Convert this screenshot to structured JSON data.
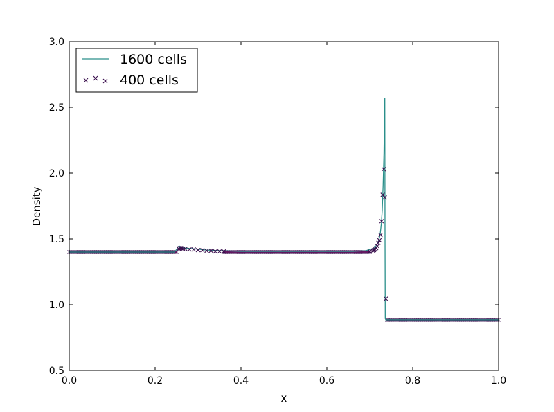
{
  "chart_data": {
    "type": "line",
    "title": "",
    "xlabel": "x",
    "ylabel": "Density",
    "xlim": [
      0.0,
      1.0
    ],
    "ylim": [
      0.5,
      3.0
    ],
    "xticks": [
      "0.0",
      "0.2",
      "0.4",
      "0.6",
      "0.8",
      "1.0"
    ],
    "yticks": [
      "0.5",
      "1.0",
      "1.5",
      "2.0",
      "2.5",
      "3.0"
    ],
    "grid": false,
    "legend_position": "top-left",
    "series": [
      {
        "name": "1600 cells",
        "style": "line",
        "color": "#2a8f8a",
        "points": [
          [
            0.0,
            1.4
          ],
          [
            0.245,
            1.4
          ],
          [
            0.25,
            1.42
          ],
          [
            0.253,
            1.44
          ],
          [
            0.257,
            1.445
          ],
          [
            0.262,
            1.435
          ],
          [
            0.27,
            1.43
          ],
          [
            0.29,
            1.425
          ],
          [
            0.32,
            1.415
          ],
          [
            0.36,
            1.41
          ],
          [
            0.4,
            1.405
          ],
          [
            0.5,
            1.405
          ],
          [
            0.6,
            1.405
          ],
          [
            0.66,
            1.405
          ],
          [
            0.69,
            1.41
          ],
          [
            0.7,
            1.42
          ],
          [
            0.71,
            1.43
          ],
          [
            0.715,
            1.45
          ],
          [
            0.72,
            1.48
          ],
          [
            0.724,
            1.53
          ],
          [
            0.727,
            1.62
          ],
          [
            0.729,
            1.72
          ],
          [
            0.731,
            1.9
          ],
          [
            0.733,
            2.15
          ],
          [
            0.734,
            2.4
          ],
          [
            0.735,
            2.57
          ],
          [
            0.7355,
            1.5
          ],
          [
            0.736,
            0.9
          ],
          [
            0.737,
            0.885
          ],
          [
            1.0,
            0.885
          ]
        ]
      },
      {
        "name": "400 cells",
        "style": "marker-x",
        "color": "#3b0f4e",
        "accent_color": "#c0238c",
        "segments": [
          {
            "from": 0.0,
            "to": 0.25,
            "y": 1.4
          },
          {
            "from": 0.25,
            "to": 0.25,
            "y": 1.4
          },
          {
            "from": 0.738,
            "to": 1.0,
            "y": 0.885
          }
        ],
        "points": [
          [
            0.255,
            1.425
          ],
          [
            0.2575,
            1.43
          ],
          [
            0.26,
            1.43
          ],
          [
            0.2625,
            1.43
          ],
          [
            0.265,
            1.425
          ],
          [
            0.27,
            1.425
          ],
          [
            0.28,
            1.42
          ],
          [
            0.29,
            1.42
          ],
          [
            0.3,
            1.415
          ],
          [
            0.31,
            1.415
          ],
          [
            0.32,
            1.41
          ],
          [
            0.33,
            1.41
          ],
          [
            0.34,
            1.405
          ],
          [
            0.35,
            1.405
          ],
          [
            0.36,
            1.405
          ],
          [
            0.7,
            1.405
          ],
          [
            0.7075,
            1.41
          ],
          [
            0.71,
            1.415
          ],
          [
            0.7125,
            1.42
          ],
          [
            0.715,
            1.43
          ],
          [
            0.7175,
            1.445
          ],
          [
            0.72,
            1.47
          ],
          [
            0.7225,
            1.49
          ],
          [
            0.725,
            1.53
          ],
          [
            0.7275,
            1.635
          ],
          [
            0.73,
            1.835
          ],
          [
            0.7325,
            2.03
          ],
          [
            0.735,
            1.815
          ],
          [
            0.7375,
            1.045
          ]
        ],
        "plateau_left": {
          "from": 0.0,
          "to": 0.25,
          "y": 1.4
        },
        "plateau_mid": {
          "from": 0.36,
          "to": 0.7,
          "y": 1.4
        },
        "plateau_right": {
          "from": 0.74,
          "to": 1.0,
          "y": 0.885
        }
      }
    ]
  }
}
